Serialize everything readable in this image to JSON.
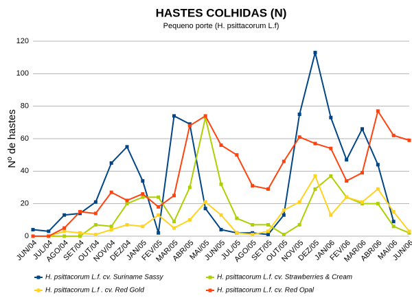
{
  "chart_data": {
    "type": "line",
    "title": "HASTES COLHIDAS (N)",
    "subtitle": "Pequeno porte (H. psittacorum L.f)",
    "y_label": "Nº de hastes",
    "categories": [
      "JUN/04",
      "JUL/04",
      "AGO/04",
      "SET/04",
      "OUT/04",
      "NOV/04",
      "DEZ/04",
      "JAN/05",
      "FEV/05",
      "MAR/05",
      "ABR/05",
      "MAI/05",
      "JUN/05",
      "JUL/05",
      "AGO/05",
      "SET/05",
      "OUT/05",
      "NOV/05",
      "DEZ/05",
      "JAN/06",
      "FEV/06",
      "MAR/06",
      "ABR/06",
      "MAI/06",
      "JUN/06"
    ],
    "series": [
      {
        "name": "H. psittacorum L.f. cv. Suriname Sassy",
        "color": "#004586",
        "values": [
          4,
          3,
          13,
          14,
          21,
          45,
          55,
          34,
          2,
          74,
          69,
          17,
          4,
          2,
          2,
          1,
          13,
          75,
          113,
          73,
          47,
          66,
          44,
          9,
          null
        ]
      },
      {
        "name": "H. psittacorum L.f. cv. Strawberries & Cream",
        "color": "#aecf00",
        "values": [
          0,
          0,
          0,
          0,
          7,
          6,
          20,
          24,
          24,
          9,
          30,
          73,
          32,
          11,
          7,
          7,
          1,
          7,
          29,
          37,
          24,
          20,
          20,
          6,
          2
        ]
      },
      {
        "name": "H. psittacorum L.f . cv. Red Gold",
        "color": "#ffd320",
        "values": [
          0,
          0,
          3,
          2,
          1,
          4,
          7,
          6,
          13,
          5,
          10,
          21,
          13,
          2,
          1,
          3,
          16,
          21,
          37,
          13,
          24,
          21,
          29,
          15,
          3
        ]
      },
      {
        "name": "H. psittacorum L.f. cv. Red Opal",
        "color": "#ff420e",
        "values": [
          0,
          0,
          5,
          15,
          14,
          27,
          22,
          26,
          18,
          25,
          68,
          74,
          56,
          50,
          31,
          29,
          46,
          61,
          57,
          54,
          34,
          39,
          77,
          62,
          59
        ]
      }
    ],
    "ylim": [
      0,
      120
    ],
    "yticks": [
      0,
      20,
      40,
      60,
      80,
      100,
      120
    ],
    "grid": true
  }
}
